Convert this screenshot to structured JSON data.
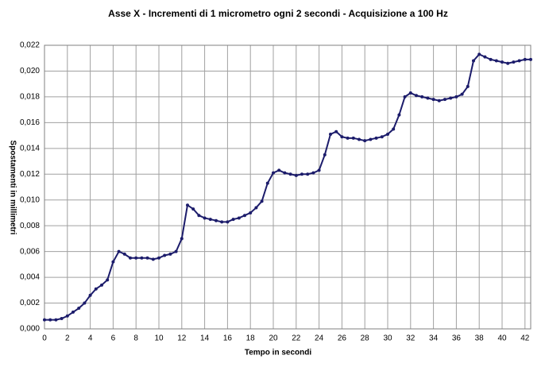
{
  "chart_data": {
    "type": "line",
    "title": "Asse X - Incrementi di 1 micrometro ogni 2 secondi - Acquisizione a 100 Hz",
    "x_label": "Tempo in secondi",
    "y_label": "Spostamenti in millimetri",
    "x": [
      0,
      0.5,
      1,
      1.5,
      2,
      2.5,
      3,
      3.5,
      4,
      4.5,
      5,
      5.5,
      6,
      6.5,
      7,
      7.5,
      8,
      8.5,
      9,
      9.5,
      10,
      10.5,
      11,
      11.5,
      12,
      12.5,
      13,
      13.5,
      14,
      14.5,
      15,
      15.5,
      16,
      16.5,
      17,
      17.5,
      18,
      18.5,
      19,
      19.5,
      20,
      20.5,
      21,
      21.5,
      22,
      22.5,
      23,
      23.5,
      24,
      24.5,
      25,
      25.5,
      26,
      26.5,
      27,
      27.5,
      28,
      28.5,
      29,
      29.5,
      30,
      30.5,
      31,
      31.5,
      32,
      32.5,
      33,
      33.5,
      34,
      34.5,
      35,
      35.5,
      36,
      36.5,
      37,
      37.5,
      38,
      38.5,
      39,
      39.5,
      40,
      40.5,
      41,
      41.5,
      42,
      42.5
    ],
    "series": [
      {
        "color": "#1c1c6b",
        "values": [
          0.0007,
          0.0007,
          0.0007,
          0.0008,
          0.001,
          0.0013,
          0.0016,
          0.002,
          0.0026,
          0.0031,
          0.0034,
          0.0038,
          0.0052,
          0.006,
          0.0058,
          0.0055,
          0.0055,
          0.0055,
          0.0055,
          0.0054,
          0.0055,
          0.0057,
          0.0058,
          0.006,
          0.007,
          0.0096,
          0.0093,
          0.0088,
          0.0086,
          0.0085,
          0.0084,
          0.0083,
          0.0083,
          0.0085,
          0.0086,
          0.0088,
          0.009,
          0.0094,
          0.0099,
          0.0113,
          0.0121,
          0.0123,
          0.0121,
          0.012,
          0.0119,
          0.012,
          0.012,
          0.0121,
          0.0123,
          0.0135,
          0.0151,
          0.0153,
          0.0149,
          0.0148,
          0.0148,
          0.0147,
          0.0146,
          0.0147,
          0.0148,
          0.0149,
          0.0151,
          0.0155,
          0.0166,
          0.018,
          0.0183,
          0.0181,
          0.018,
          0.0179,
          0.0178,
          0.0177,
          0.0178,
          0.0179,
          0.018,
          0.0182,
          0.0188,
          0.0208,
          0.0213,
          0.0211,
          0.0209,
          0.0208,
          0.0207,
          0.0206,
          0.0207,
          0.0208,
          0.0209,
          0.0209
        ]
      }
    ],
    "xlim": [
      0,
      42.5
    ],
    "ylim": [
      0,
      0.022
    ],
    "xticks": [
      0,
      2,
      4,
      6,
      8,
      10,
      12,
      14,
      16,
      18,
      20,
      22,
      24,
      26,
      28,
      30,
      32,
      34,
      36,
      38,
      40,
      42
    ],
    "yticks": [
      {
        "value": 0,
        "label": "0,000"
      },
      {
        "value": 0.002,
        "label": "0,002"
      },
      {
        "value": 0.004,
        "label": "0,004"
      },
      {
        "value": 0.006,
        "label": "0,006"
      },
      {
        "value": 0.008,
        "label": "0,008"
      },
      {
        "value": 0.01,
        "label": "0,010"
      },
      {
        "value": 0.012,
        "label": "0,012"
      },
      {
        "value": 0.014,
        "label": "0,014"
      },
      {
        "value": 0.016,
        "label": "0,016"
      },
      {
        "value": 0.018,
        "label": "0,018"
      },
      {
        "value": 0.02,
        "label": "0,020"
      },
      {
        "value": 0.022,
        "label": "0,022"
      }
    ],
    "grid": true
  }
}
